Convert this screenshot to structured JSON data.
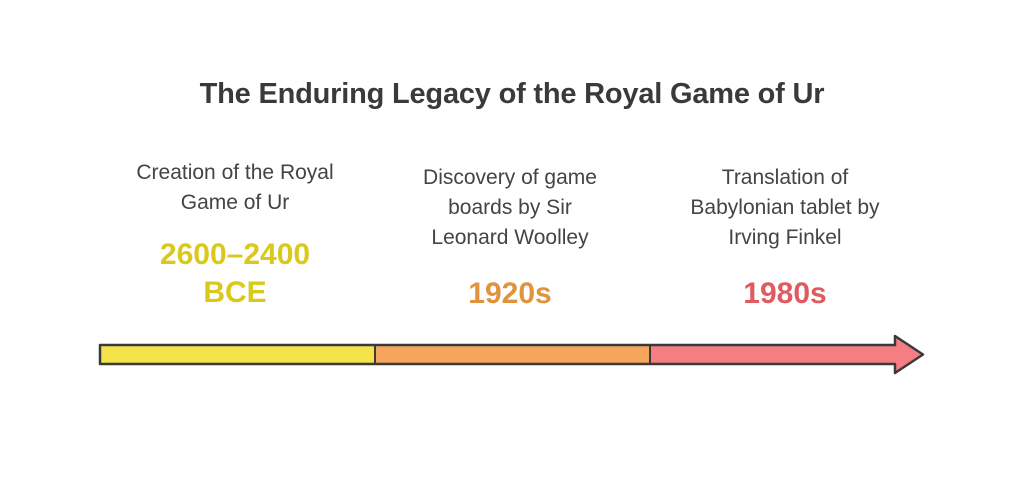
{
  "title": "The Enduring Legacy of the Royal Game of Ur",
  "events": [
    {
      "description_lines": [
        "Creation of the Royal",
        "Game of Ur"
      ],
      "date_lines": [
        "2600–2400",
        "BCE"
      ],
      "color": "#d9c91c",
      "segment_color": "#f4e34a"
    },
    {
      "description_lines": [
        "Discovery of game",
        "boards by Sir",
        "Leonard Woolley"
      ],
      "date_lines": [
        "1920s"
      ],
      "color": "#e0933a",
      "segment_color": "#f5a65c"
    },
    {
      "description_lines": [
        "Translation of",
        "Babylonian tablet by",
        "Irving Finkel"
      ],
      "date_lines": [
        "1980s"
      ],
      "color": "#e05a5f",
      "segment_color": "#f47e82"
    }
  ],
  "colors": {
    "title": "#3a3a3a",
    "text": "#444444",
    "outline": "#3a3a3a"
  }
}
